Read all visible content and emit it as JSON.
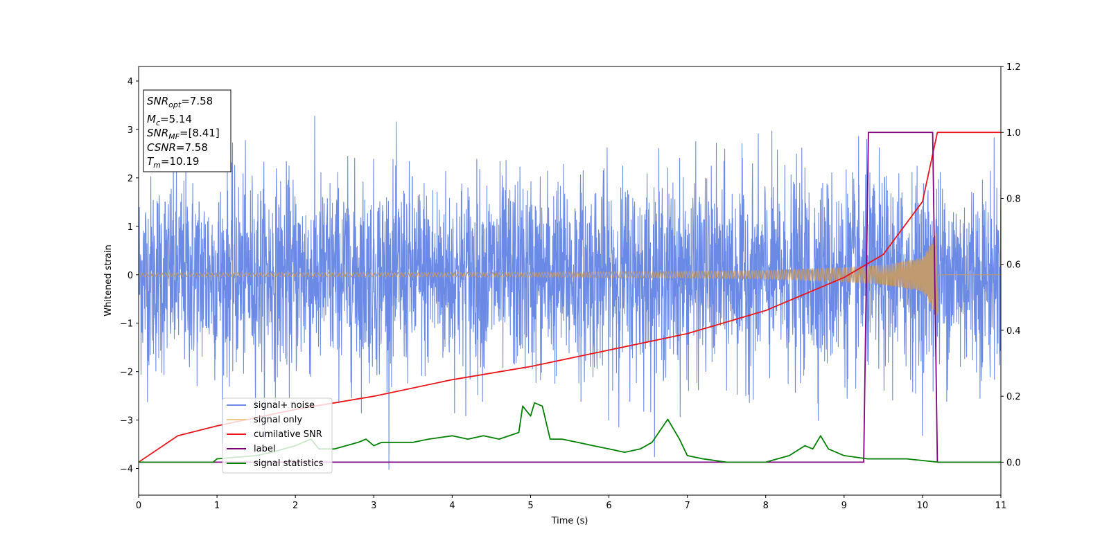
{
  "chart_data": {
    "type": "line",
    "xlabel": "Time (s)",
    "ylabel": "Whitened strain",
    "xlim": [
      0,
      11
    ],
    "ylim": [
      -4.55,
      4.3
    ],
    "y2lim": [
      -0.1,
      1.2
    ],
    "x_ticks": [
      "0",
      "1",
      "2",
      "3",
      "4",
      "5",
      "6",
      "7",
      "8",
      "9",
      "10",
      "11"
    ],
    "y_ticks": [
      "−4",
      "−3",
      "−2",
      "−1",
      "0",
      "1",
      "2",
      "3",
      "4"
    ],
    "y2_ticks": [
      "0.0",
      "0.2",
      "0.4",
      "0.6",
      "0.8",
      "1.0",
      "1.2"
    ],
    "annotation": {
      "snr_opt": {
        "main": "SNR",
        "sub": "opt",
        "value": "=7.58"
      },
      "mc": {
        "main": "M",
        "sub": "c",
        "value": "=5.14"
      },
      "snr_mf": {
        "main": "SNR",
        "sub": "MF",
        "value": "=[8.41]"
      },
      "csnr": {
        "main": "CSNR",
        "value": "=7.58"
      },
      "tm": {
        "main": "T",
        "sub": "m",
        "value": "=10.19"
      }
    },
    "legend": {
      "location": "lower-left",
      "entries": [
        {
          "label": "signal+ noise",
          "color": "#6b8ae6"
        },
        {
          "label": "signal only",
          "color": "#f5c88a"
        },
        {
          "label": "cumilative SNR",
          "color": "#e8141a"
        },
        {
          "label": "label",
          "color": "#800080"
        },
        {
          "label": "signal statistics",
          "color": "#008000"
        }
      ]
    },
    "series": [
      {
        "name": "signal+ noise",
        "axis": "left",
        "color": "#6b8ae6",
        "kind": "noise",
        "std": 1.0,
        "x_range": [
          0,
          11
        ]
      },
      {
        "name": "signal only",
        "axis": "left",
        "color": "#c09a70",
        "kind": "chirp",
        "merger_time": 10.19,
        "envelope": {
          "t": [
            0,
            5,
            7,
            8,
            9,
            9.5,
            10,
            10.19,
            10.2,
            11
          ],
          "a": [
            0.04,
            0.05,
            0.07,
            0.09,
            0.15,
            0.2,
            0.35,
            0.9,
            0,
            0
          ]
        }
      },
      {
        "name": "cumilative SNR",
        "axis": "right",
        "color": "#e8141a",
        "x": [
          0,
          0.5,
          1,
          2,
          3,
          4,
          5,
          6,
          7,
          8,
          9,
          9.5,
          10,
          10.19,
          11
        ],
        "y": [
          0.0,
          0.08,
          0.11,
          0.16,
          0.2,
          0.25,
          0.29,
          0.34,
          0.39,
          0.46,
          0.56,
          0.63,
          0.79,
          1.0,
          1.0
        ]
      },
      {
        "name": "label",
        "axis": "right",
        "color": "#800080",
        "x": [
          0,
          9.25,
          9.31,
          10.13,
          10.19,
          11
        ],
        "y": [
          0.0,
          0.0,
          1.0,
          1.0,
          0.0,
          0.0
        ]
      },
      {
        "name": "signal statistics",
        "axis": "right",
        "color": "#008000",
        "x": [
          0,
          0.5,
          0.95,
          1.0,
          1.5,
          1.7,
          2.0,
          2.2,
          2.3,
          2.5,
          2.8,
          2.9,
          3.0,
          3.1,
          3.5,
          3.7,
          4.0,
          4.2,
          4.4,
          4.6,
          4.85,
          4.9,
          5.0,
          5.05,
          5.15,
          5.25,
          5.4,
          5.6,
          5.8,
          6.0,
          6.2,
          6.4,
          6.55,
          6.75,
          6.9,
          7.0,
          7.2,
          7.5,
          8.0,
          8.3,
          8.5,
          8.6,
          8.7,
          8.8,
          9.0,
          9.3,
          9.8,
          10.2,
          11
        ],
        "y": [
          0.0,
          0.0,
          0.0,
          0.01,
          0.02,
          0.03,
          0.05,
          0.07,
          0.04,
          0.04,
          0.06,
          0.07,
          0.05,
          0.06,
          0.06,
          0.07,
          0.08,
          0.07,
          0.08,
          0.07,
          0.09,
          0.17,
          0.14,
          0.18,
          0.17,
          0.07,
          0.07,
          0.06,
          0.05,
          0.04,
          0.03,
          0.04,
          0.06,
          0.13,
          0.07,
          0.02,
          0.01,
          0.0,
          0.0,
          0.02,
          0.05,
          0.04,
          0.08,
          0.04,
          0.02,
          0.01,
          0.01,
          0.0,
          0.0
        ]
      }
    ]
  }
}
